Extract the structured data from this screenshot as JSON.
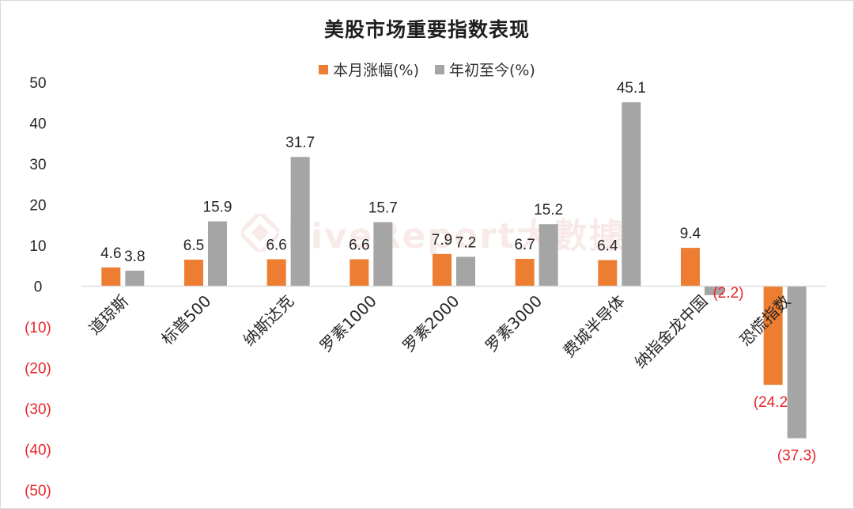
{
  "title": "美股市场重要指数表现",
  "watermark": "LiveReport大數據",
  "legend": [
    {
      "label": "本月涨幅(%)",
      "color": "#ED7D31"
    },
    {
      "label": "年初至今(%)",
      "color": "#A5A5A5"
    }
  ],
  "chart_data": {
    "type": "bar",
    "title": "美股市场重要指数表现",
    "categories": [
      "道琼斯",
      "标普500",
      "纳斯达克",
      "罗素1000",
      "罗素2000",
      "罗素3000",
      "费城半导体",
      "纳指金龙中国",
      "恐慌指数"
    ],
    "series": [
      {
        "name": "本月涨幅(%)",
        "color": "#ED7D31",
        "values": [
          4.6,
          6.5,
          6.6,
          6.6,
          7.9,
          6.7,
          6.4,
          9.4,
          -24.2
        ]
      },
      {
        "name": "年初至今(%)",
        "color": "#A5A5A5",
        "values": [
          3.8,
          15.9,
          31.7,
          15.7,
          7.2,
          15.2,
          45.1,
          -2.2,
          -37.3
        ]
      }
    ],
    "data_labels": [
      [
        "4.6",
        "6.5",
        "6.6",
        "6.6",
        "7.9",
        "6.7",
        "6.4",
        "9.4",
        "(24.2)"
      ],
      [
        "3.8",
        "15.9",
        "31.7",
        "15.7",
        "7.2",
        "15.2",
        "45.1",
        "(2.2)",
        "(37.3)"
      ]
    ],
    "y_ticks": [
      "50",
      "40",
      "30",
      "20",
      "10",
      "0",
      "(10)",
      "(20)",
      "(30)",
      "(40)",
      "(50)"
    ],
    "ylim": [
      -50,
      50
    ],
    "negative_label_color": "#E8262A",
    "legend_position": "top",
    "grid": false
  }
}
